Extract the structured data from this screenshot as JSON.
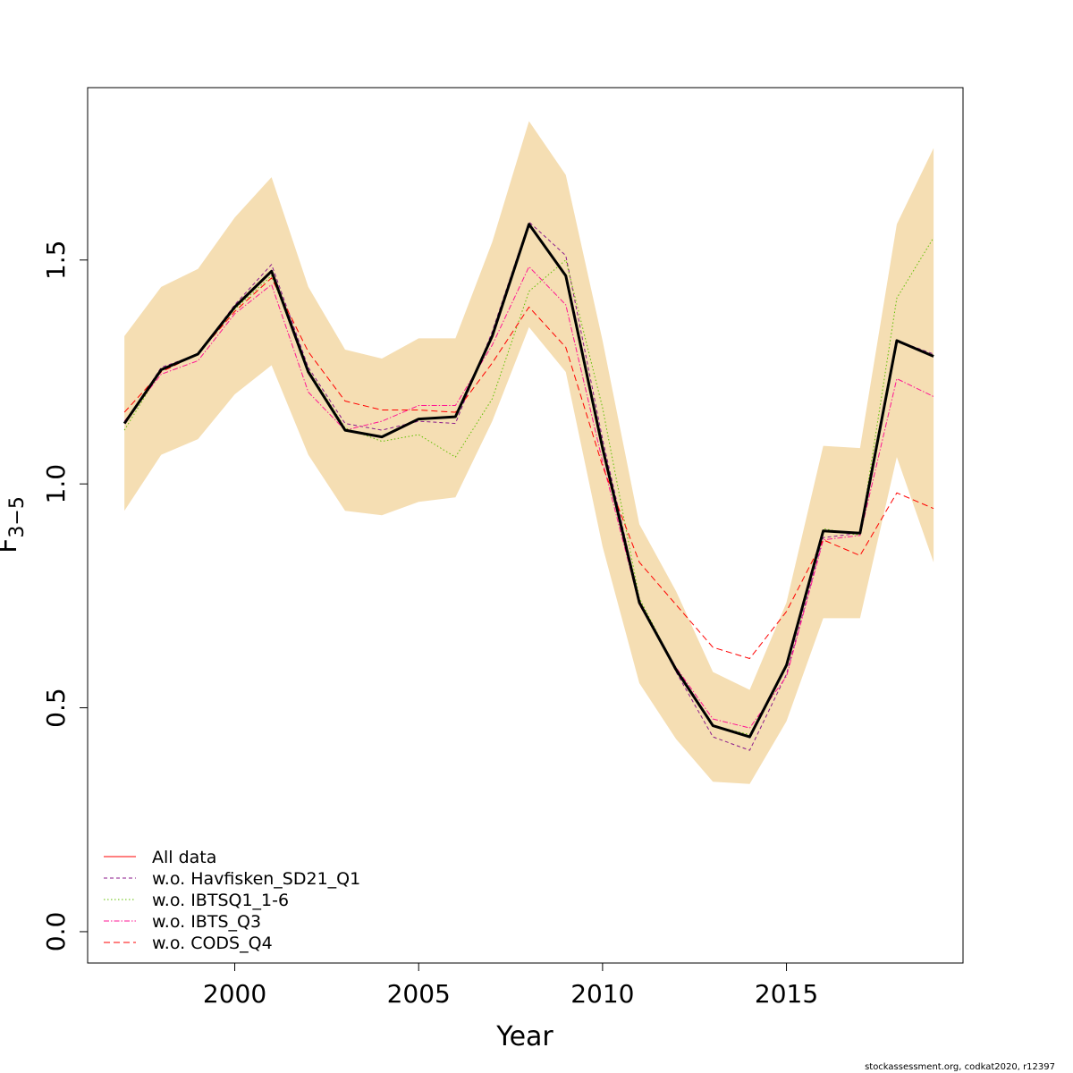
{
  "chart_data": {
    "type": "line",
    "title": "",
    "xlabel": "Year",
    "ylabel": "F",
    "ylabel_subscript": "3−5",
    "xlim": [
      1996.0,
      2019.8
    ],
    "ylim": [
      -0.07,
      1.885
    ],
    "xticks": [
      2000,
      2005,
      2010,
      2015
    ],
    "yticks": [
      0.0,
      0.5,
      1.0,
      1.5
    ],
    "ytick_labels": [
      "0.0",
      "0.5",
      "1.0",
      "1.5"
    ],
    "x": [
      1997,
      1998,
      1999,
      2000,
      2001,
      2002,
      2003,
      2004,
      2005,
      2006,
      2007,
      2008,
      2009,
      2010,
      2011,
      2012,
      2013,
      2014,
      2015,
      2016,
      2017,
      2018,
      2019
    ],
    "band": {
      "name": "confidence interval",
      "color": "#f5deb3",
      "lower": [
        0.94,
        1.065,
        1.1,
        1.2,
        1.265,
        1.065,
        0.94,
        0.93,
        0.96,
        0.97,
        1.14,
        1.35,
        1.25,
        0.86,
        0.555,
        0.43,
        0.335,
        0.33,
        0.47,
        0.7,
        0.7,
        1.06,
        0.825
      ],
      "upper": [
        1.33,
        1.44,
        1.48,
        1.595,
        1.685,
        1.44,
        1.3,
        1.28,
        1.325,
        1.325,
        1.54,
        1.81,
        1.69,
        1.32,
        0.91,
        0.76,
        0.58,
        0.54,
        0.735,
        1.085,
        1.08,
        1.58,
        1.75
      ]
    },
    "series": [
      {
        "name": "All data",
        "legend": "All data",
        "color": "#000000",
        "legend_color": "#ff0000",
        "dash": "",
        "width": 3,
        "values": [
          1.135,
          1.255,
          1.29,
          1.395,
          1.475,
          1.25,
          1.12,
          1.105,
          1.145,
          1.15,
          1.33,
          1.58,
          1.465,
          1.08,
          0.735,
          0.585,
          0.46,
          0.435,
          0.595,
          0.895,
          0.89,
          1.32,
          1.285
        ]
      },
      {
        "name": "w.o. Havfisken_SD21_Q1",
        "legend": "w.o. Havfisken_SD21_Q1",
        "color": "#8b1a8b",
        "dash": "4,3",
        "width": 1,
        "values": [
          1.135,
          1.26,
          1.29,
          1.4,
          1.49,
          1.26,
          1.135,
          1.12,
          1.14,
          1.135,
          1.34,
          1.585,
          1.51,
          1.1,
          0.74,
          0.58,
          0.435,
          0.405,
          0.575,
          0.88,
          0.89,
          1.32,
          1.29
        ]
      },
      {
        "name": "w.o. IBTSQ1_1-6",
        "legend": "w.o. IBTSQ1_1-6",
        "color": "#5fbf00",
        "dash": "1.5,2.5",
        "width": 1,
        "values": [
          1.12,
          1.255,
          1.29,
          1.39,
          1.465,
          1.255,
          1.125,
          1.095,
          1.11,
          1.06,
          1.19,
          1.43,
          1.5,
          1.17,
          0.745,
          0.585,
          0.46,
          0.44,
          0.595,
          0.9,
          0.885,
          1.415,
          1.55
        ]
      },
      {
        "name": "w.o. IBTS_Q3",
        "legend": "w.o. IBTS_Q3",
        "color": "#ff1493",
        "dash": "6,2,1.5,2",
        "width": 1,
        "values": [
          1.14,
          1.245,
          1.275,
          1.38,
          1.445,
          1.205,
          1.12,
          1.14,
          1.175,
          1.175,
          1.31,
          1.485,
          1.4,
          1.05,
          0.73,
          0.59,
          0.475,
          0.455,
          0.57,
          0.875,
          0.885,
          1.235,
          1.195
        ]
      },
      {
        "name": "w.o. CODS_Q4",
        "legend": "w.o. CODS_Q4",
        "color": "#ff0000",
        "dash": "7,4",
        "width": 1,
        "values": [
          1.16,
          1.25,
          1.29,
          1.385,
          1.46,
          1.295,
          1.185,
          1.165,
          1.165,
          1.16,
          1.27,
          1.395,
          1.305,
          1.04,
          0.825,
          0.73,
          0.635,
          0.61,
          0.715,
          0.875,
          0.84,
          0.98,
          0.945
        ]
      }
    ]
  },
  "footer": "stockassessment.org, codkat2020, r12397"
}
